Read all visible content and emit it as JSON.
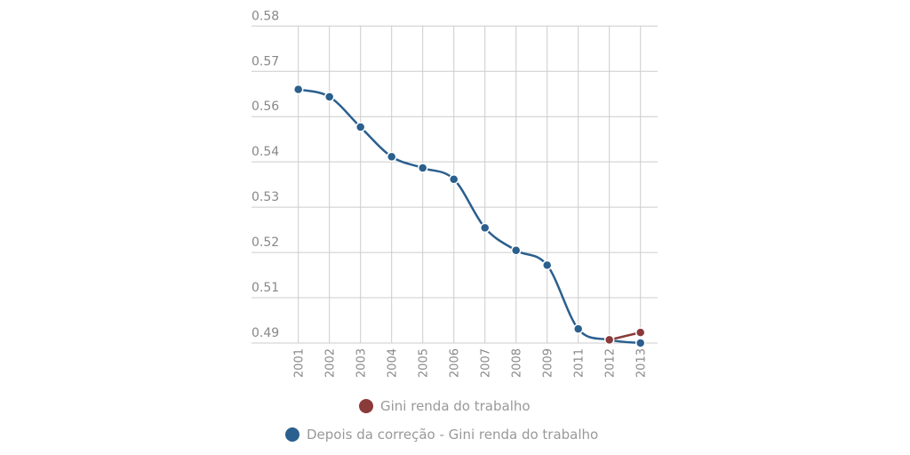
{
  "chart_data": {
    "type": "line",
    "categories": [
      "2001",
      "2002",
      "2003",
      "2004",
      "2005",
      "2006",
      "2007",
      "2008",
      "2009",
      "2011",
      "2012",
      "2013"
    ],
    "y_tick_labels": [
      "0.58",
      "0.57",
      "0.56",
      "0.54",
      "0.53",
      "0.52",
      "0.51",
      "0.49"
    ],
    "ylim": [
      0.49,
      0.58
    ],
    "grid": true,
    "legend_position": "bottom",
    "series": [
      {
        "name": "Gini renda do trabalho",
        "color": "#8b3a3a",
        "values": [
          null,
          null,
          null,
          null,
          null,
          null,
          null,
          null,
          null,
          null,
          0.4909,
          0.493
        ]
      },
      {
        "name": "Depois da correção - Gini renda do trabalho",
        "color": "#2b5f8e",
        "values": [
          0.562,
          0.5599,
          0.5513,
          0.5429,
          0.5397,
          0.5365,
          0.5227,
          0.5163,
          0.5121,
          0.494,
          0.4909,
          0.49
        ]
      }
    ]
  }
}
